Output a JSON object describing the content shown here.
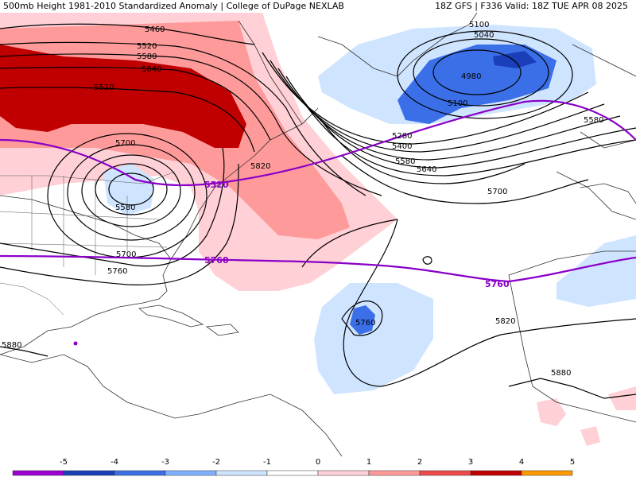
{
  "header": {
    "title": "500mb Height 1981-2010 Standardized Anomaly | College of DuPage NEXLAB",
    "run_info": "18Z GFS | F336 Valid: 18Z TUE APR 08 2025"
  },
  "contours": {
    "height_labels": [
      "5460",
      "5520",
      "5580",
      "5640",
      "5700",
      "5580",
      "5520",
      "5700",
      "5760",
      "5820",
      "5100",
      "5040",
      "4980",
      "5100",
      "5280",
      "5400",
      "5580",
      "5640",
      "5700",
      "5820",
      "5880",
      "5760",
      "5880",
      "5580"
    ],
    "highlight_labels": [
      "5520",
      "5760",
      "5760"
    ]
  },
  "colorbar": {
    "ticks": [
      "-5",
      "-4",
      "-3",
      "-2",
      "-1",
      "0",
      "1",
      "2",
      "3",
      "4",
      "5"
    ],
    "colors": [
      "#9b00d0",
      "#1a3fb8",
      "#3a6fe8",
      "#7fb0ff",
      "#cfe4ff",
      "#ffffff",
      "#ffd0d6",
      "#ff9a9a",
      "#ee4a4a",
      "#c00000",
      "#ff9900"
    ]
  }
}
